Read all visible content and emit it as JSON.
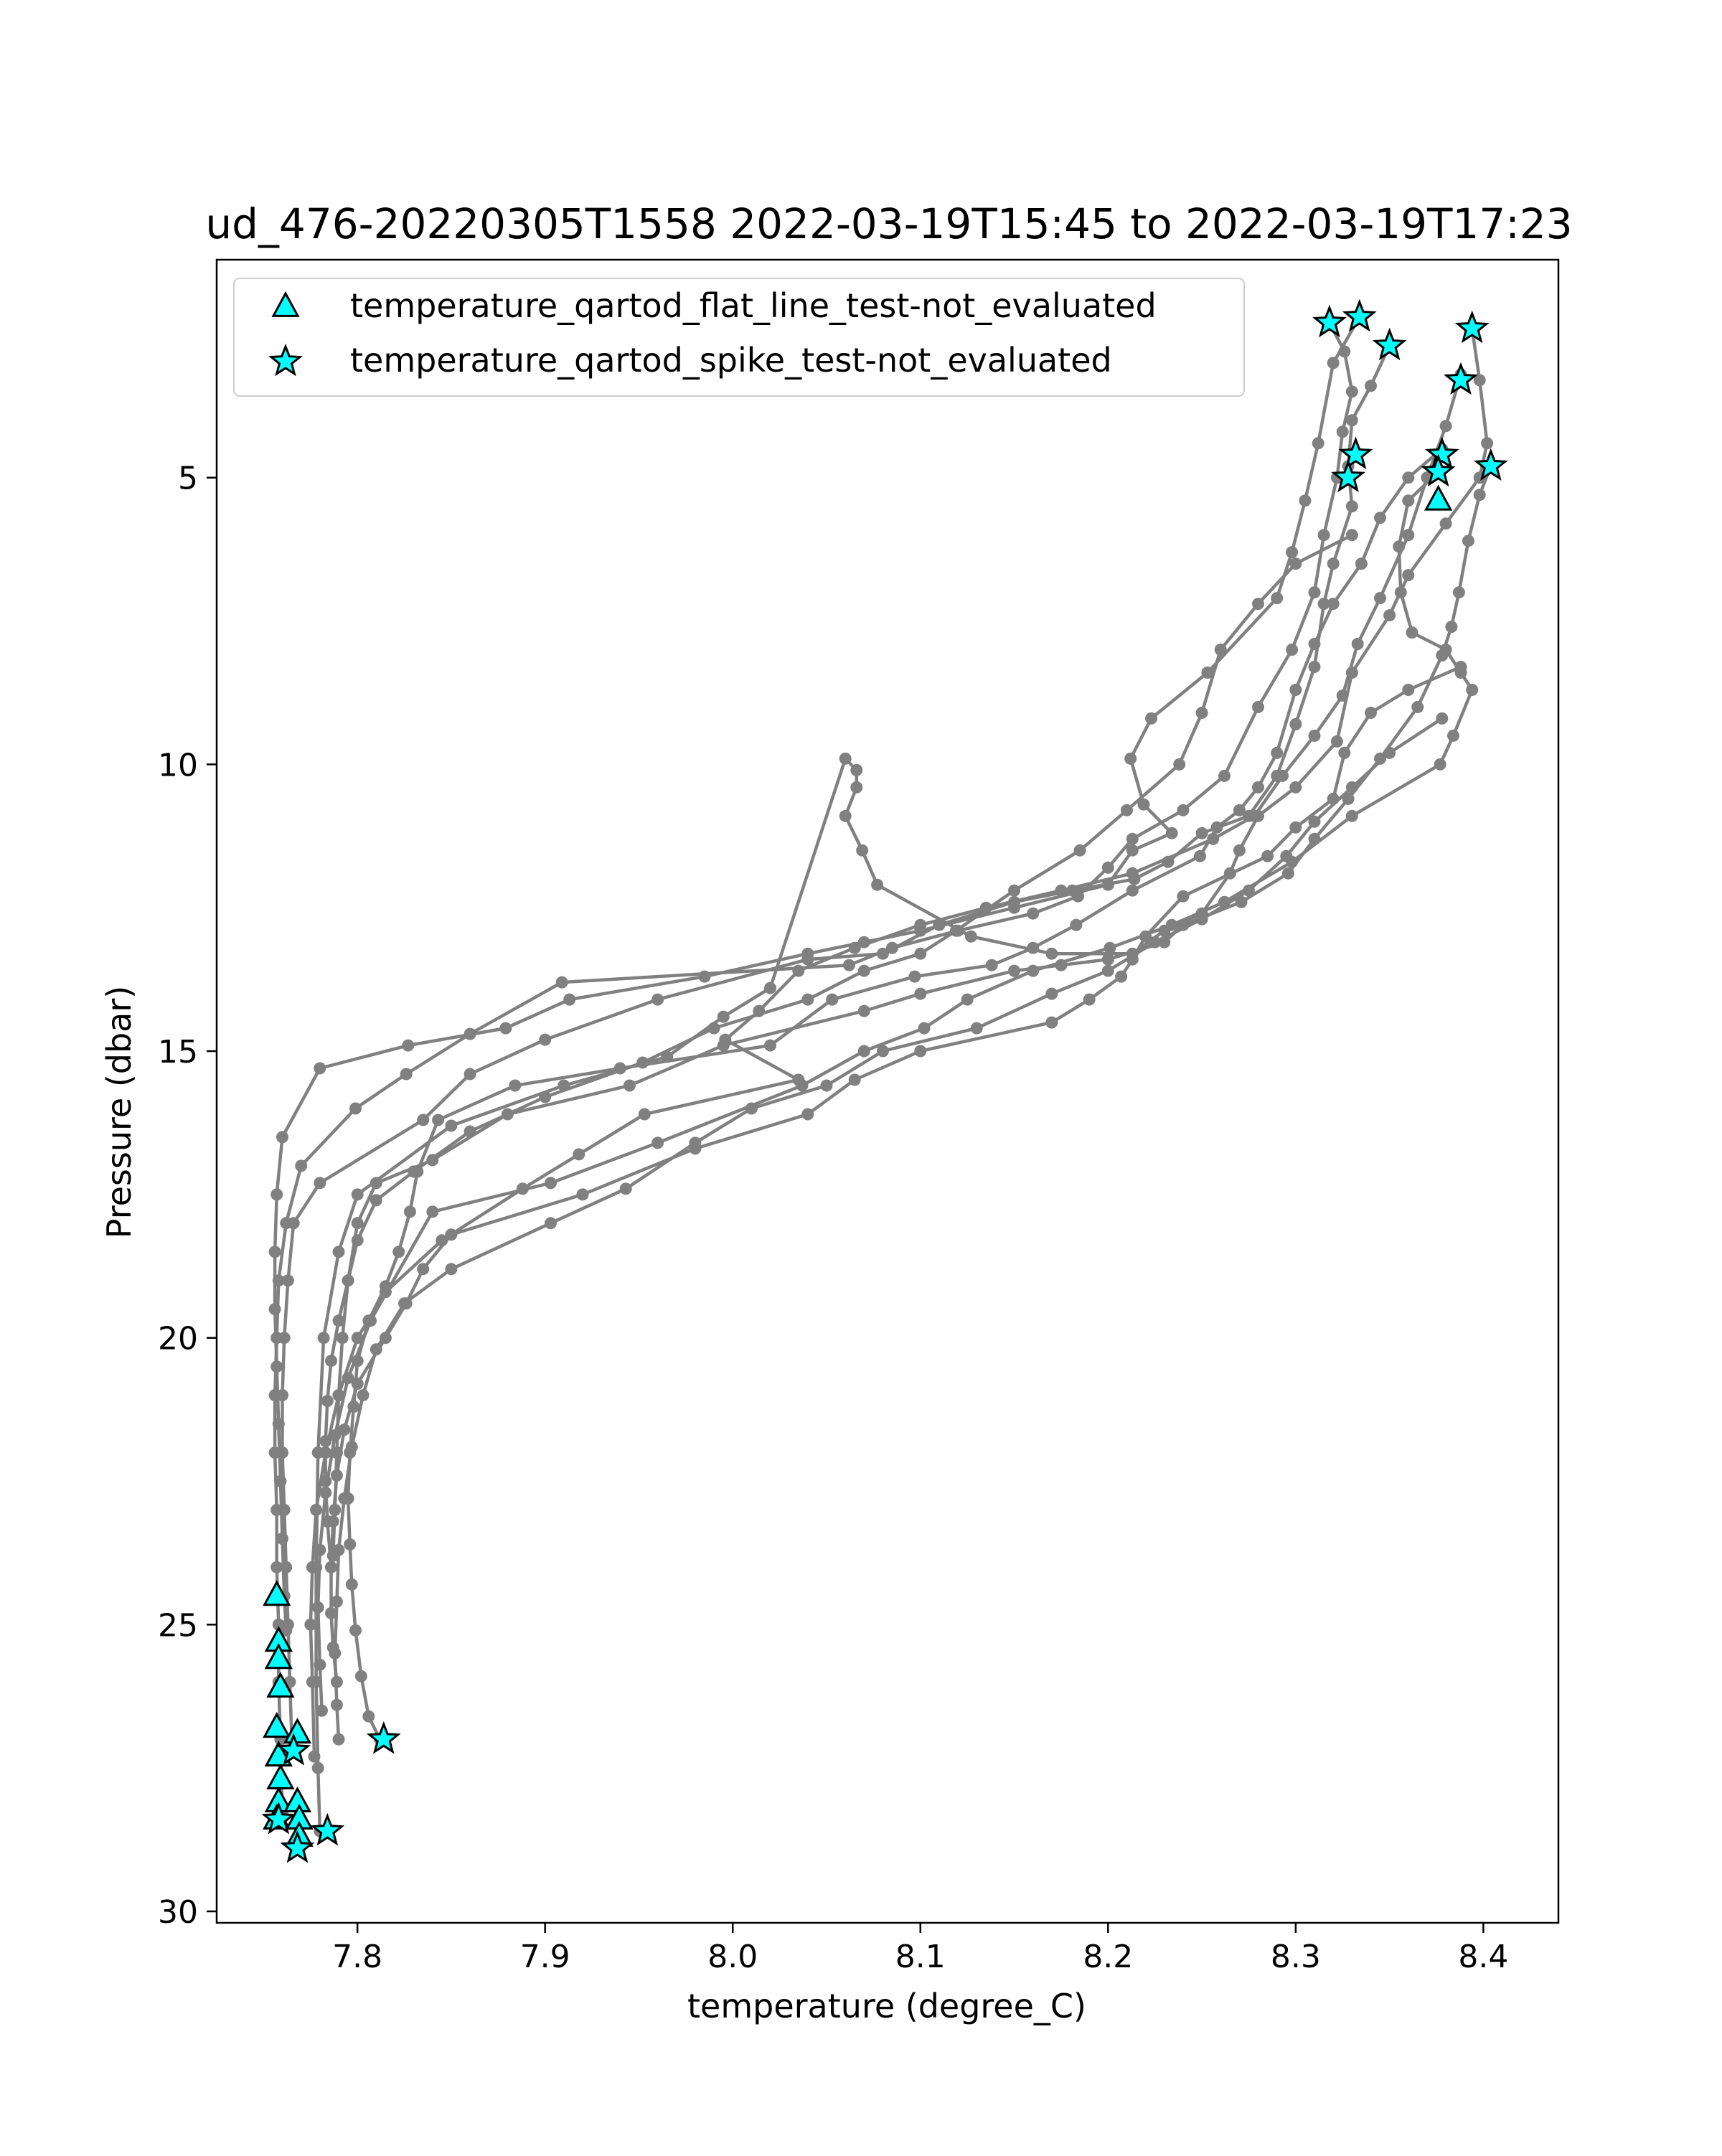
{
  "chart_data": {
    "type": "scatter",
    "title": "ud_476-20220305T1558 2022-03-19T15:45 to 2022-03-19T17:23",
    "xlabel": "temperature (degree_C)",
    "ylabel": "Pressure (dbar)",
    "xlim": [
      7.725,
      8.44
    ],
    "ylim": [
      30.2,
      1.2
    ],
    "y_inverted": true,
    "grid": false,
    "legend_position": "upper-left",
    "x_ticks": [
      7.8,
      7.9,
      8.0,
      8.1,
      8.2,
      8.3,
      8.4
    ],
    "x_tick_labels": [
      "7.8",
      "7.9",
      "8.0",
      "8.1",
      "8.2",
      "8.3",
      "8.4"
    ],
    "y_ticks": [
      5,
      10,
      15,
      20,
      25,
      30
    ],
    "y_tick_labels": [
      "5",
      "10",
      "15",
      "20",
      "25",
      "30"
    ],
    "colors": {
      "profile": "#808080",
      "flag_fill": "#00ffff",
      "flag_edge": "#000000",
      "frame": "#000000"
    },
    "profiles": [
      {
        "x": [
          8.318,
          8.326,
          8.33,
          8.325,
          8.322,
          8.315,
          8.31,
          8.298,
          8.28,
          8.262,
          8.24,
          8.213,
          8.2,
          8.184,
          8.16,
          8.12,
          8.085,
          8.062,
          7.909,
          7.86,
          7.826,
          7.799,
          7.77,
          7.762,
          7.758,
          7.757,
          7.756,
          7.756,
          7.757,
          7.757,
          7.758,
          7.758,
          7.759,
          7.76
        ],
        "y": [
          2.3,
          2.8,
          3.5,
          4.2,
          5.0,
          6.0,
          7.0,
          8.0,
          9.0,
          10.2,
          10.8,
          11.3,
          11.8,
          12.3,
          12.6,
          12.9,
          13.2,
          13.5,
          13.8,
          14.7,
          15.4,
          16.0,
          17.0,
          18.0,
          19.0,
          20.0,
          21.0,
          22.0,
          23.0,
          24.0,
          25.0,
          26.0,
          27.0,
          28.3
        ]
      },
      {
        "x": [
          8.334,
          8.32,
          8.312,
          8.305,
          8.298,
          8.29,
          8.253,
          8.223,
          8.212,
          8.219,
          8.234,
          8.213,
          8.2,
          8.15,
          8.1,
          8.07,
          8.04,
          7.985,
          7.913,
          7.879,
          7.827,
          7.78,
          7.76,
          7.757,
          7.756,
          7.756,
          7.757,
          7.758,
          7.759,
          7.76,
          7.761,
          7.762
        ],
        "y": [
          2.2,
          3.0,
          4.4,
          5.4,
          6.3,
          7.1,
          8.4,
          9.2,
          9.9,
          10.7,
          11.2,
          11.5,
          12.1,
          12.5,
          12.9,
          13.1,
          13.3,
          13.7,
          14.1,
          14.6,
          14.9,
          15.3,
          16.5,
          17.5,
          18.5,
          19.5,
          20.5,
          21.5,
          22.5,
          23.5,
          24.5,
          25.1
        ]
      },
      {
        "x": [
          8.35,
          8.34,
          8.33,
          8.328,
          8.33,
          8.32,
          8.315,
          8.31,
          8.3,
          8.29,
          8.275,
          8.25,
          8.232,
          8.214,
          8.181,
          8.15,
          8.11,
          8.08,
          8.04,
          7.96,
          7.9,
          7.86,
          7.835,
          7.78,
          7.766,
          7.763,
          7.761,
          7.76,
          7.76,
          7.761,
          7.762,
          7.763,
          7.764,
          7.765,
          7.766
        ],
        "y": [
          2.7,
          3.4,
          4.0,
          4.8,
          5.5,
          6.5,
          7.2,
          8.3,
          9.3,
          10.2,
          10.9,
          11.2,
          11.7,
          12.0,
          12.2,
          12.4,
          12.8,
          13.3,
          13.4,
          14.1,
          14.8,
          15.4,
          16.2,
          17.3,
          18.0,
          19.0,
          20.0,
          21.0,
          22.0,
          23.0,
          24.0,
          25.0,
          26.0,
          27.0,
          27.2
        ]
      },
      {
        "x": [
          8.394,
          8.398,
          8.402,
          8.398,
          8.38,
          8.36,
          8.35,
          8.33,
          8.322,
          8.3,
          8.28,
          8.27,
          8.265,
          8.25,
          8.23,
          8.213,
          8.17,
          8.127,
          8.077,
          8.069,
          8.06,
          8.066,
          8.066,
          8.06,
          8.02,
          7.995,
          7.965,
          7.91,
          7.85,
          7.8,
          7.79,
          7.782,
          7.779,
          7.778,
          7.778,
          7.779,
          7.78
        ],
        "y": [
          2.4,
          3.3,
          4.4,
          5.0,
          5.8,
          6.7,
          7.4,
          8.4,
          9.6,
          10.4,
          10.9,
          11.5,
          11.9,
          12.6,
          12.9,
          13.3,
          13.3,
          13.0,
          12.1,
          11.5,
          10.9,
          10.4,
          10.1,
          9.9,
          13.9,
          14.4,
          15.1,
          15.6,
          16.3,
          17.5,
          18.5,
          20.0,
          22.0,
          24.0,
          26.0,
          27.5,
          28.6
        ]
      },
      {
        "x": [
          8.388,
          8.38,
          8.37,
          8.36,
          8.345,
          8.333,
          8.325,
          8.31,
          8.293,
          8.278,
          8.256,
          8.213,
          8.175,
          8.135,
          8.1,
          8.065,
          8.035,
          8.014,
          7.996,
          8.035,
          7.953,
          7.918,
          7.888,
          7.845,
          7.815,
          7.8,
          7.79,
          7.783,
          7.778,
          7.776,
          7.775,
          7.776,
          7.777
        ],
        "y": [
          3.2,
          4.1,
          5.0,
          6.0,
          7.1,
          7.9,
          8.8,
          9.5,
          10.2,
          10.9,
          11.3,
          11.9,
          12.2,
          12.5,
          12.8,
          13.2,
          13.6,
          14.3,
          14.8,
          15.5,
          16.1,
          16.8,
          17.4,
          18.3,
          19.2,
          20.0,
          21.0,
          22.0,
          23.0,
          24.0,
          25.0,
          26.0,
          27.3
        ]
      },
      {
        "x": [
          8.378,
          8.36,
          8.345,
          8.335,
          8.32,
          8.31,
          8.3,
          8.29,
          8.28,
          8.27,
          8.258,
          8.249,
          8.213,
          8.183,
          8.16,
          8.138,
          8.097,
          8.053,
          8.02,
          7.94,
          7.884,
          7.843,
          7.832,
          7.828,
          7.822,
          7.815,
          7.806,
          7.8,
          7.798,
          7.796,
          7.795,
          7.796,
          7.797,
          7.799,
          7.802,
          7.806,
          7.812
        ],
        "y": [
          4.5,
          5.0,
          5.7,
          6.5,
          7.2,
          7.9,
          8.7,
          9.8,
          10.4,
          10.8,
          11.1,
          11.6,
          12.2,
          12.8,
          13.2,
          13.5,
          13.7,
          14.1,
          14.9,
          15.3,
          15.6,
          16.2,
          17.1,
          17.8,
          18.5,
          19.1,
          19.7,
          20.4,
          21.2,
          22.0,
          22.8,
          23.6,
          24.3,
          25.1,
          25.9,
          26.6,
          27.0
        ]
      },
      {
        "x": [
          8.376,
          8.36,
          8.355,
          8.356,
          8.362,
          8.38,
          8.388,
          8.394,
          8.384,
          8.377,
          8.33,
          8.298,
          8.262,
          8.234,
          8.201,
          8.16,
          8.125,
          8.102,
          8.07,
          8.037,
          7.96,
          7.903,
          7.84,
          7.807,
          7.795,
          7.788,
          7.783,
          7.78,
          7.779,
          7.78,
          7.781
        ],
        "y": [
          4.9,
          5.4,
          6.2,
          7.0,
          7.7,
          8.0,
          8.4,
          8.7,
          9.5,
          10.0,
          10.9,
          11.7,
          12.4,
          12.8,
          13.2,
          13.6,
          14.1,
          14.6,
          15.0,
          15.6,
          16.6,
          17.3,
          17.8,
          19.7,
          20.7,
          21.7,
          22.7,
          23.7,
          24.7,
          25.7,
          26.5
        ]
      },
      {
        "x": [
          8.404,
          8.398,
          8.392,
          8.387,
          8.383,
          8.378,
          8.365,
          8.345,
          8.328,
          8.31,
          8.296,
          8.271,
          8.24,
          8.23,
          8.2,
          8.175,
          8.15,
          8.1,
          8.07,
          7.995,
          7.945,
          7.88,
          7.84,
          7.81,
          7.8,
          7.795,
          7.792,
          7.79,
          7.789,
          7.788,
          7.787
        ],
        "y": [
          4.8,
          5.3,
          6.1,
          7.0,
          7.6,
          8.1,
          9.0,
          9.9,
          10.6,
          11.3,
          11.9,
          12.4,
          12.8,
          13.1,
          13.4,
          13.5,
          13.6,
          14.0,
          14.3,
          14.9,
          15.6,
          16.1,
          16.9,
          17.3,
          18.0,
          19.0,
          20.0,
          21.0,
          22.0,
          23.0,
          23.8
        ]
      },
      {
        "x": [
          8.388,
          8.36,
          8.34,
          8.326,
          8.32,
          8.3,
          8.285,
          8.24,
          8.22,
          8.213,
          8.207,
          8.19,
          8.17,
          8.1,
          8.065,
          8.04,
          7.98,
          7.92,
          7.85,
          7.835,
          7.826,
          7.815,
          7.8,
          7.793,
          7.789,
          7.787,
          7.786,
          7.786,
          7.787,
          7.789
        ],
        "y": [
          8.3,
          8.7,
          9.1,
          9.8,
          10.6,
          11.1,
          11.6,
          12.3,
          13.0,
          13.4,
          13.7,
          14.1,
          14.5,
          15.0,
          15.5,
          16.1,
          16.7,
          17.5,
          18.2,
          18.8,
          19.4,
          20.0,
          20.8,
          21.6,
          22.4,
          23.2,
          24.0,
          24.8,
          25.4,
          26.0
        ]
      },
      {
        "x": [
          8.378,
          8.35,
          8.33,
          8.31,
          8.295,
          8.275,
          8.25,
          8.225,
          8.2,
          8.17,
          8.13,
          8.08,
          8.05,
          8.01,
          7.98,
          7.943,
          7.903,
          7.85,
          7.825,
          7.81,
          7.803,
          7.797,
          7.793,
          7.79,
          7.789,
          7.788,
          7.789,
          7.79
        ],
        "y": [
          9.2,
          9.8,
          10.4,
          11.0,
          11.6,
          12.2,
          12.7,
          13.1,
          13.6,
          14.0,
          14.6,
          15.0,
          15.6,
          16.0,
          16.6,
          17.4,
          18.0,
          18.8,
          19.4,
          20.2,
          21.0,
          21.9,
          22.8,
          23.7,
          24.6,
          25.5,
          26.4,
          27.0
        ]
      },
      {
        "x": [
          8.33,
          8.3,
          8.28,
          8.26,
          8.25,
          8.238,
          8.21,
          8.185,
          8.15,
          8.119,
          8.1,
          8.07,
          8.04,
          7.99,
          7.952,
          7.9,
          7.86,
          7.83,
          7.81,
          7.8,
          7.795,
          7.79,
          7.786,
          7.784,
          7.783,
          7.783,
          7.784,
          7.786
        ],
        "y": [
          6.0,
          6.5,
          7.2,
          8.0,
          9.1,
          10.0,
          10.8,
          11.5,
          12.2,
          12.9,
          13.3,
          13.6,
          14.1,
          14.6,
          15.2,
          15.8,
          16.4,
          17.1,
          17.6,
          18.3,
          19.0,
          19.7,
          20.4,
          21.1,
          21.8,
          22.5,
          23.2,
          24.0
        ]
      }
    ],
    "series": [
      {
        "name": "temperature_qartod_flat_line_test-not_evaluated",
        "marker": "triangle",
        "x": [
          8.376,
          7.757,
          7.758,
          7.758,
          7.759,
          7.757,
          7.758,
          7.759,
          7.758,
          7.757,
          7.768,
          7.768,
          7.769,
          7.769
        ],
        "y": [
          5.4,
          24.5,
          25.3,
          25.6,
          26.1,
          26.8,
          27.3,
          27.7,
          28.1,
          28.4,
          26.9,
          28.1,
          28.4,
          28.7
        ]
      },
      {
        "name": "temperature_qartod_spike_test-not_evaluated",
        "marker": "star",
        "x": [
          8.318,
          8.334,
          8.35,
          8.394,
          8.388,
          8.332,
          8.328,
          8.378,
          8.376,
          8.404,
          7.814,
          7.766,
          7.784,
          7.768,
          7.758
        ],
        "y": [
          2.3,
          2.2,
          2.7,
          2.4,
          3.3,
          4.6,
          5.0,
          4.6,
          4.9,
          4.8,
          27.0,
          27.2,
          28.6,
          28.9,
          28.4
        ]
      }
    ]
  }
}
